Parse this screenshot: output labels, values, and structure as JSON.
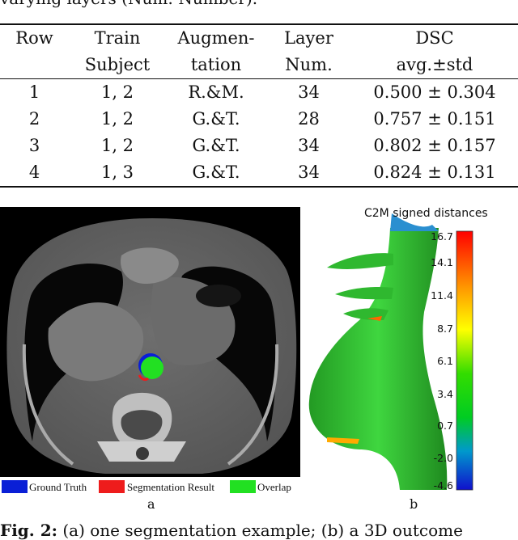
{
  "caption_top": "varying layers (Num: Number).",
  "table": {
    "header_row1": [
      "Row",
      "Train",
      "Augmen-",
      "Layer",
      "DSC"
    ],
    "header_row2": [
      "",
      "Subject",
      "tation",
      "Num.",
      "avg.±std"
    ],
    "rows": [
      [
        "1",
        "1, 2",
        "R.&M.",
        "34",
        "0.500 ± 0.304"
      ],
      [
        "2",
        "1, 2",
        "G.&T.",
        "28",
        "0.757 ± 0.151"
      ],
      [
        "3",
        "1, 2",
        "G.&T.",
        "34",
        "0.802 ± 0.157"
      ],
      [
        "4",
        "1, 3",
        "G.&T.",
        "34",
        "0.824 ± 0.131"
      ]
    ]
  },
  "figure_a": {
    "label": "a",
    "legend": [
      {
        "label": "Ground Truth",
        "color": "#0a1fd6"
      },
      {
        "label": "Segmentation Result",
        "color": "#ee1c1c"
      },
      {
        "label": "Overlap",
        "color": "#22e022"
      }
    ]
  },
  "figure_b": {
    "label": "b",
    "colorbar_title": "C2M signed distances",
    "ticks": [
      "16.7",
      "14.1",
      "11.4",
      "8.7",
      "6.1",
      "3.4",
      "0.7",
      "-2.0",
      "-4.6"
    ]
  },
  "caption_bottom": {
    "bold": "Fig. 2:",
    "text": " (a) one segmentation example; (b) a 3D outcome"
  }
}
